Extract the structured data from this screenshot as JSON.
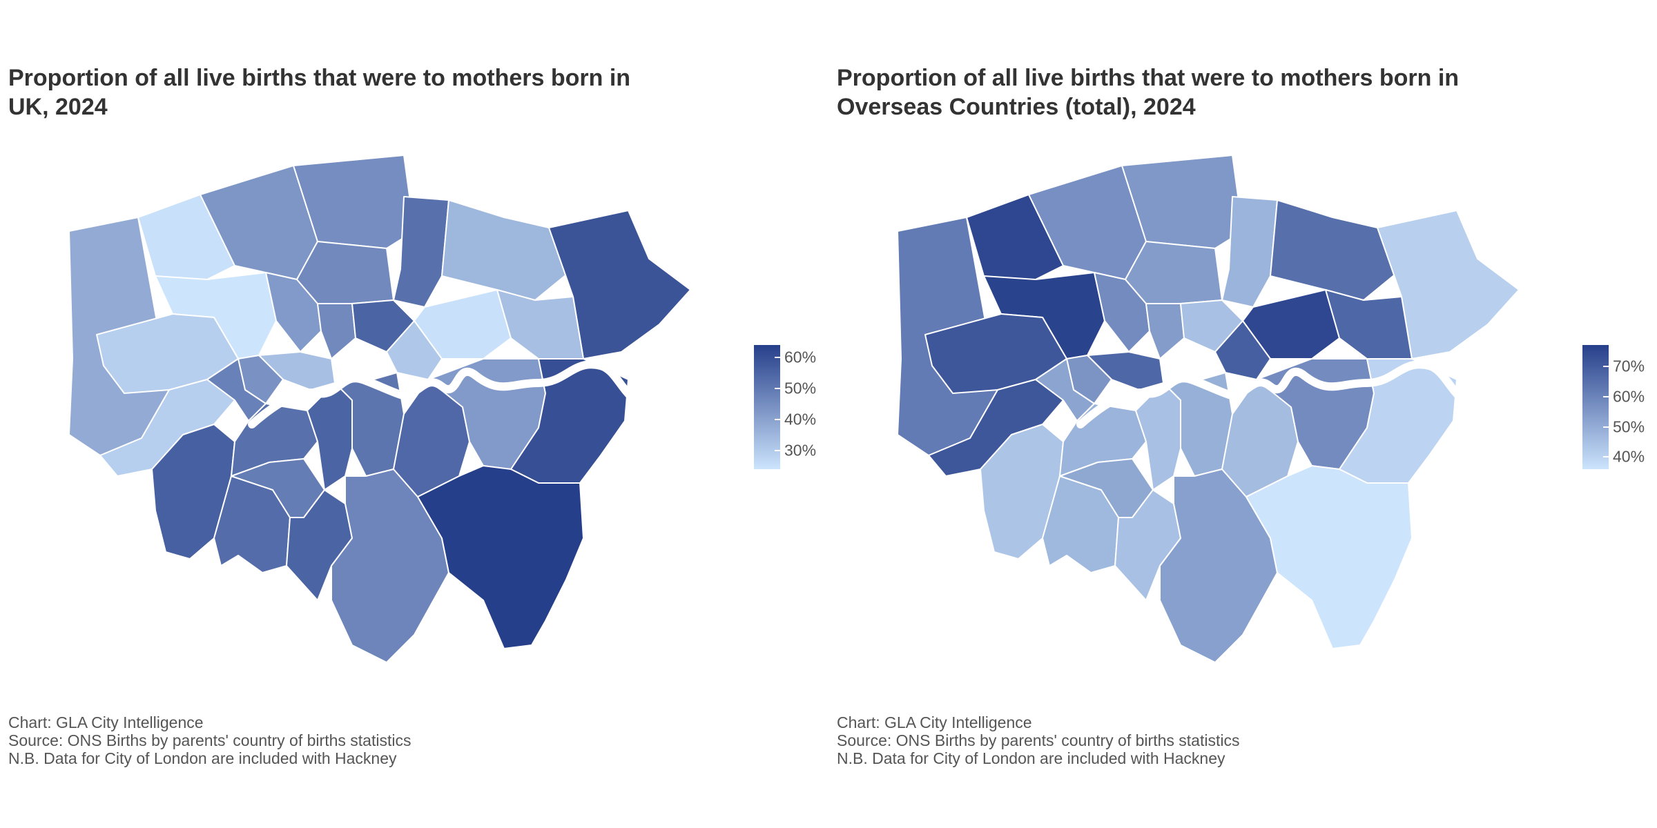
{
  "panels": [
    {
      "title_line1": "Proportion of all live births that were to mothers born in",
      "title_line2": "UK, 2024",
      "legend": {
        "color_low": "#cce4fc",
        "color_high": "#263f8a",
        "range": [
          24,
          64
        ],
        "ticks": [
          {
            "value": 30,
            "label": "30%"
          },
          {
            "value": 40,
            "label": "40%"
          },
          {
            "value": 50,
            "label": "50%"
          },
          {
            "value": 60,
            "label": "60%"
          }
        ]
      },
      "values": {
        "Hillingdon": 38,
        "Harrow": 25,
        "Barnet": 43,
        "Enfield": 45,
        "Brent": 24,
        "Ealing": 29,
        "Hounslow": 29,
        "Richmond upon Thames": 56,
        "Kingston upon Thames": 53,
        "Haringey": 46,
        "Camden": 42,
        "Islington": 46,
        "Hackney": 55,
        "Waltham Forest": 52,
        "Redbridge": 35,
        "Havering": 59,
        "Barking and Dagenham": 33,
        "Newham": 25,
        "Tower Hamlets": 31,
        "Hammersmith and Fulham": 48,
        "Kensington and Chelsea": 44,
        "Westminster": 33,
        "Wandsworth": 52,
        "Lambeth": 55,
        "Southwark": 51,
        "Lewisham": 54,
        "Greenwich": 42,
        "Bexley": 60,
        "Bromley": 65,
        "Croydon": 47,
        "Sutton": 55,
        "Merton": 49
      },
      "caption": [
        "Chart: GLA City Intelligence",
        "Source: ONS Births by parents' country of births statistics",
        "N.B. Data for City of London are included with Hackney"
      ]
    },
    {
      "title_line1": "Proportion of all live births that were to mothers born in",
      "title_line2": "Overseas Countries (total), 2024",
      "legend": {
        "color_low": "#cce4fc",
        "color_high": "#263f8a",
        "range": [
          36,
          77
        ],
        "ticks": [
          {
            "value": 40,
            "label": "40%"
          },
          {
            "value": 50,
            "label": "50%"
          },
          {
            "value": 60,
            "label": "60%"
          },
          {
            "value": 70,
            "label": "70%"
          }
        ]
      },
      "values": {
        "Hillingdon": 62,
        "Harrow": 75,
        "Barnet": 57,
        "Enfield": 55,
        "Brent": 76,
        "Ealing": 71,
        "Hounslow": 71,
        "Richmond upon Thames": 44,
        "Kingston upon Thames": 47,
        "Haringey": 54,
        "Camden": 58,
        "Islington": 54,
        "Hackney": 45,
        "Waltham Forest": 48,
        "Redbridge": 65,
        "Havering": 41,
        "Barking and Dagenham": 67,
        "Newham": 75,
        "Tower Hamlets": 69,
        "Hammersmith and Fulham": 52,
        "Kensington and Chelsea": 56,
        "Westminster": 67,
        "Wandsworth": 48,
        "Lambeth": 45,
        "Southwark": 49,
        "Lewisham": 46,
        "Greenwich": 58,
        "Bexley": 40,
        "Bromley": 35,
        "Croydon": 53,
        "Sutton": 45,
        "Merton": 51
      },
      "caption": [
        "Chart: GLA City Intelligence",
        "Source: ONS Births by parents' country of births statistics",
        "N.B. Data for City of London are included with Hackney"
      ]
    }
  ]
}
